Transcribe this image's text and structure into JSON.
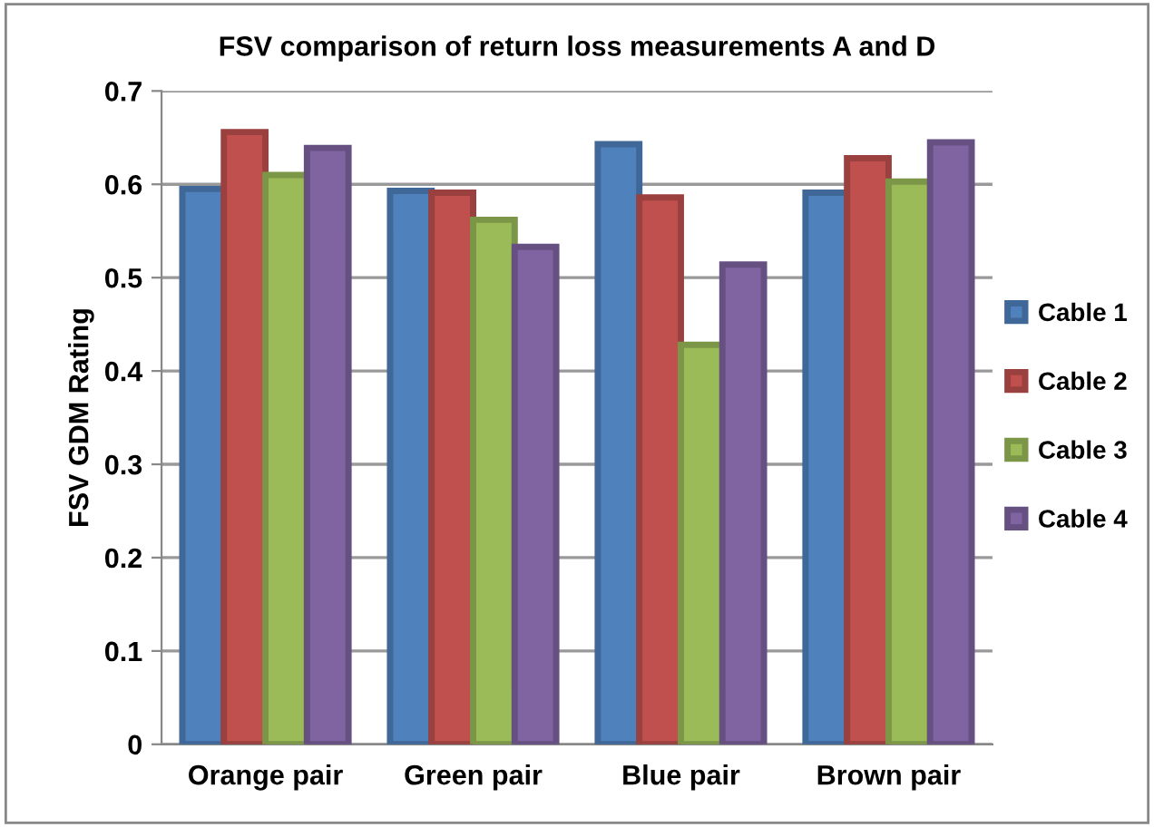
{
  "chart_data": {
    "type": "bar",
    "title": "FSV comparison of return loss measurements A and D",
    "ylabel": "FSV GDM Rating",
    "categories": [
      "Orange pair",
      "Green pair",
      "Blue pair",
      "Brown pair"
    ],
    "series": [
      {
        "name": "Cable 1",
        "color": "#4f81bd",
        "values": [
          0.595,
          0.593,
          0.643,
          0.591
        ]
      },
      {
        "name": "Cable 2",
        "color": "#c0504d",
        "values": [
          0.656,
          0.591,
          0.586,
          0.628
        ]
      },
      {
        "name": "Cable 3",
        "color": "#9bbb59",
        "values": [
          0.61,
          0.562,
          0.428,
          0.603
        ]
      },
      {
        "name": "Cable 4",
        "color": "#8064a2",
        "values": [
          0.639,
          0.533,
          0.514,
          0.645
        ]
      }
    ],
    "ylim": [
      0,
      0.7
    ],
    "yticks": [
      0,
      0.1,
      0.2,
      0.3,
      0.4,
      0.5,
      0.6,
      0.7
    ],
    "grid": "y",
    "legend": "right"
  }
}
